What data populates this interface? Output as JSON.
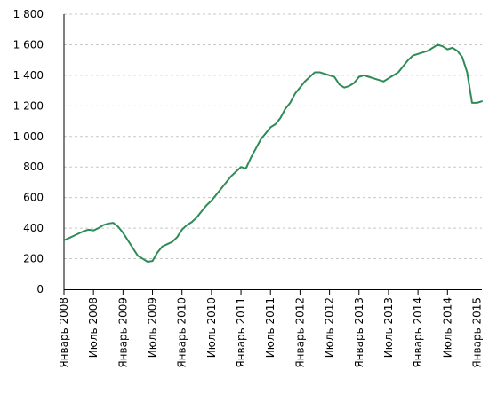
{
  "chart_data": {
    "type": "line",
    "title": "",
    "xlabel": "",
    "ylabel": "",
    "ylim": [
      0,
      1800
    ],
    "yticks": [
      {
        "value": 0,
        "label": "0"
      },
      {
        "value": 200,
        "label": "200"
      },
      {
        "value": 400,
        "label": "400"
      },
      {
        "value": 600,
        "label": "600"
      },
      {
        "value": 800,
        "label": "800"
      },
      {
        "value": 1000,
        "label": "1 000"
      },
      {
        "value": 1200,
        "label": "1 200"
      },
      {
        "value": 1400,
        "label": "1 400"
      },
      {
        "value": 1600,
        "label": "1 600"
      },
      {
        "value": 1800,
        "label": "1 800"
      }
    ],
    "xlim": [
      "2008-01",
      "2015-02"
    ],
    "xticks": [
      {
        "value": "2008-01",
        "label": "Январь 2008"
      },
      {
        "value": "2008-07",
        "label": "Июль 2008"
      },
      {
        "value": "2009-01",
        "label": "Январь 2009"
      },
      {
        "value": "2009-07",
        "label": "Июль 2009"
      },
      {
        "value": "2010-01",
        "label": "Январь 2010"
      },
      {
        "value": "2010-07",
        "label": "Июль 2010"
      },
      {
        "value": "2011-01",
        "label": "Январь 2011"
      },
      {
        "value": "2011-07",
        "label": "Июль 2011"
      },
      {
        "value": "2012-01",
        "label": "Январь 2012"
      },
      {
        "value": "2012-07",
        "label": "Июль 2012"
      },
      {
        "value": "2013-01",
        "label": "Январь 2013"
      },
      {
        "value": "2013-07",
        "label": "Июль 2013"
      },
      {
        "value": "2014-01",
        "label": "Январь 2014"
      },
      {
        "value": "2014-07",
        "label": "Июль 2014"
      },
      {
        "value": "2015-01",
        "label": "Январь 2015"
      }
    ],
    "grid": true,
    "series": [
      {
        "name": "",
        "color": "#2e8b57",
        "x": [
          "2008-01",
          "2008-02",
          "2008-03",
          "2008-04",
          "2008-05",
          "2008-06",
          "2008-07",
          "2008-08",
          "2008-09",
          "2008-10",
          "2008-11",
          "2008-12",
          "2009-01",
          "2009-02",
          "2009-03",
          "2009-04",
          "2009-05",
          "2009-06",
          "2009-07",
          "2009-08",
          "2009-09",
          "2009-10",
          "2009-11",
          "2009-12",
          "2010-01",
          "2010-02",
          "2010-03",
          "2010-04",
          "2010-05",
          "2010-06",
          "2010-07",
          "2010-08",
          "2010-09",
          "2010-10",
          "2010-11",
          "2010-12",
          "2011-01",
          "2011-02",
          "2011-03",
          "2011-04",
          "2011-05",
          "2011-06",
          "2011-07",
          "2011-08",
          "2011-09",
          "2011-10",
          "2011-11",
          "2011-12",
          "2012-01",
          "2012-02",
          "2012-03",
          "2012-04",
          "2012-05",
          "2012-06",
          "2012-07",
          "2012-08",
          "2012-09",
          "2012-10",
          "2012-11",
          "2012-12",
          "2013-01",
          "2013-02",
          "2013-03",
          "2013-04",
          "2013-05",
          "2013-06",
          "2013-07",
          "2013-08",
          "2013-09",
          "2013-10",
          "2013-11",
          "2013-12",
          "2014-01",
          "2014-02",
          "2014-03",
          "2014-04",
          "2014-05",
          "2014-06",
          "2014-07",
          "2014-08",
          "2014-09",
          "2014-10",
          "2014-11",
          "2014-12",
          "2015-01",
          "2015-02"
        ],
        "values": [
          320,
          335,
          350,
          365,
          380,
          390,
          385,
          400,
          420,
          430,
          435,
          410,
          370,
          320,
          270,
          220,
          200,
          180,
          185,
          240,
          280,
          295,
          310,
          340,
          390,
          420,
          440,
          470,
          510,
          550,
          580,
          620,
          660,
          700,
          740,
          770,
          800,
          790,
          860,
          920,
          980,
          1020,
          1060,
          1080,
          1120,
          1180,
          1220,
          1280,
          1320,
          1360,
          1390,
          1420,
          1420,
          1410,
          1400,
          1390,
          1340,
          1320,
          1330,
          1350,
          1390,
          1400,
          1390,
          1380,
          1370,
          1360,
          1380,
          1400,
          1420,
          1460,
          1500,
          1530,
          1540,
          1550,
          1560,
          1580,
          1600,
          1590,
          1570,
          1580,
          1560,
          1520,
          1420,
          1220,
          1220,
          1230
        ]
      }
    ]
  }
}
